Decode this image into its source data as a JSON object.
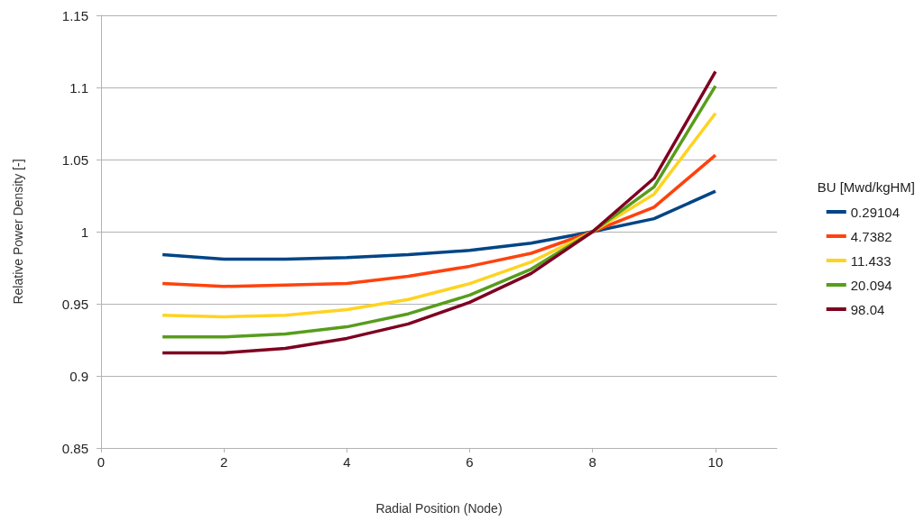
{
  "chart_data": {
    "type": "line",
    "xlabel": "Radial Position (Node)",
    "ylabel": "Relative Power Density [-]",
    "legend_title": "BU [Mwd/kgHM]",
    "legend": "right",
    "grid": "y",
    "marker": "none",
    "line_style": "solid",
    "x": [
      1,
      2,
      3,
      4,
      5,
      6,
      7,
      8,
      9,
      10
    ],
    "xlim": [
      0,
      11
    ],
    "xticks": [
      0,
      2,
      4,
      6,
      8,
      10
    ],
    "ylim": [
      0.85,
      1.15
    ],
    "yticks": [
      0.85,
      0.9,
      0.95,
      1,
      1.05,
      1.1,
      1.15
    ],
    "series": [
      {
        "name": "0.29104",
        "color": "#004586",
        "values": [
          0.984,
          0.981,
          0.981,
          0.982,
          0.984,
          0.987,
          0.992,
          1.0,
          1.009,
          1.028
        ]
      },
      {
        "name": "4.7382",
        "color": "#ff420e",
        "values": [
          0.964,
          0.962,
          0.963,
          0.964,
          0.969,
          0.976,
          0.985,
          1.0,
          1.017,
          1.053
        ]
      },
      {
        "name": "11.433",
        "color": "#ffd320",
        "values": [
          0.942,
          0.941,
          0.942,
          0.946,
          0.953,
          0.964,
          0.979,
          1.0,
          1.026,
          1.082
        ]
      },
      {
        "name": "20.094",
        "color": "#579d1c",
        "values": [
          0.927,
          0.927,
          0.929,
          0.934,
          0.943,
          0.956,
          0.974,
          1.0,
          1.031,
          1.101
        ]
      },
      {
        "name": "98.04",
        "color": "#7e0021",
        "values": [
          0.916,
          0.916,
          0.919,
          0.926,
          0.936,
          0.951,
          0.971,
          1.0,
          1.037,
          1.111
        ]
      }
    ]
  }
}
